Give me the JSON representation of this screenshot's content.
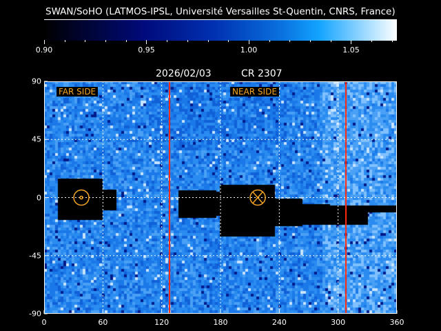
{
  "title": "SWAN/SoHO (LATMOS-IPSL, Université Versailles St-Quentin, CNRS, France)",
  "colorbar": {
    "range": [
      0.9,
      1.0724
    ],
    "major_ticks": [
      "0.90",
      "0.95",
      "1.00",
      "1.05"
    ],
    "minor_step": 0.01,
    "colors": [
      "#000000",
      "#000a7a",
      "#0a74e0",
      "#12a4ff",
      "#ffffff"
    ]
  },
  "map": {
    "date": "2026/02/03",
    "carrington_rotation": "CR 2307",
    "far_side_label": "FAR SIDE",
    "near_side_label": "NEAR SIDE",
    "label_color": "#f5a623",
    "boundary_line_color": "#ff2a10",
    "boundary_longitudes": [
      128,
      308
    ],
    "sun_symbol_longitude": 38,
    "earth_cross_longitude": 218,
    "xlim": [
      0,
      360
    ],
    "ylim": [
      -90,
      90
    ],
    "x_ticks": [
      "0",
      "60",
      "120",
      "180",
      "240",
      "300",
      "360"
    ],
    "y_ticks": [
      "90",
      "45",
      "0",
      "-45",
      "-90"
    ],
    "grid": true
  }
}
